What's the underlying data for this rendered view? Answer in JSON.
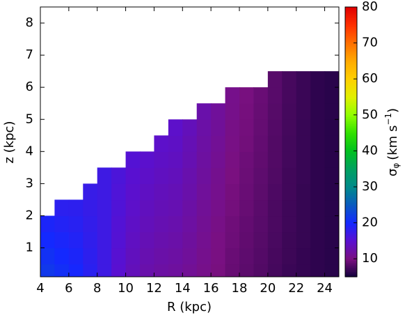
{
  "chart_data": {
    "type": "heatmap",
    "x_label": "R (kpc)",
    "y_label": "z (kpc)",
    "colorbar_label": {
      "symbol": "σ",
      "subscript": "φ",
      "unit": "(km s",
      "exponent": "−1",
      "close": ")"
    },
    "x": [
      4.5,
      5.5,
      6.5,
      7.5,
      8.5,
      9.5,
      10.5,
      11.5,
      12.5,
      13.5,
      14.5,
      15.5,
      16.5,
      17.5,
      18.5,
      19.5,
      20.5,
      21.5,
      22.5,
      23.5,
      24.5
    ],
    "y": [
      0.25,
      0.75,
      1.25,
      1.75,
      2.25,
      2.75,
      3.25,
      3.75,
      4.25,
      4.75,
      5.25,
      5.75,
      6.25
    ],
    "values": [
      [
        21.6,
        20.7,
        19.8,
        18.4,
        17,
        15.1,
        13.6,
        12.7,
        12.2,
        11.9,
        11.3,
        10.6,
        9.9,
        9.1,
        8.6,
        8.1,
        7.5,
        7.0,
        6.7,
        6.4,
        6.2
      ],
      [
        20.9,
        20.1,
        19.4,
        18.2,
        17,
        15.2,
        13.9,
        13.0,
        12.5,
        12.2,
        11.6,
        10.8,
        10.1,
        9.2,
        8.7,
        8.2,
        7.6,
        7.1,
        6.7,
        6.4,
        6.2
      ],
      [
        20.1,
        19.5,
        19.0,
        18.0,
        17,
        15.4,
        14.1,
        13.3,
        12.8,
        12.5,
        11.8,
        11.0,
        10.2,
        9.4,
        8.8,
        8.3,
        7.7,
        7.1,
        6.8,
        6.4,
        6.2
      ],
      [
        19.4,
        18.9,
        18.6,
        17.8,
        17,
        15.5,
        14.4,
        13.6,
        13.1,
        12.8,
        12.1,
        11.2,
        10.4,
        9.5,
        8.9,
        8.4,
        7.8,
        7.2,
        6.8,
        6.4,
        6.2
      ],
      [
        null,
        18.3,
        18.2,
        17.6,
        17,
        15.7,
        14.6,
        13.9,
        13.4,
        13.1,
        12.3,
        11.4,
        10.6,
        9.7,
        9.1,
        8.5,
        7.8,
        7.2,
        6.8,
        6.4,
        6.2
      ],
      [
        null,
        null,
        null,
        17.4,
        17,
        15.8,
        14.9,
        14.2,
        13.7,
        13.4,
        12.6,
        11.6,
        10.8,
        9.8,
        9.2,
        8.6,
        7.9,
        7.3,
        6.8,
        6.4,
        6.2
      ],
      [
        null,
        null,
        null,
        null,
        17,
        16.0,
        15.1,
        14.5,
        14.0,
        13.7,
        12.8,
        11.8,
        10.9,
        10.0,
        9.3,
        8.7,
        8.0,
        7.3,
        6.9,
        6.4,
        6.2
      ],
      [
        null,
        null,
        null,
        null,
        null,
        null,
        15.4,
        14.8,
        14.3,
        14.0,
        13.1,
        12.0,
        11.1,
        10.1,
        9.4,
        8.8,
        8.1,
        7.4,
        6.9,
        6.4,
        6.2
      ],
      [
        null,
        null,
        null,
        null,
        null,
        null,
        null,
        null,
        14.6,
        14.3,
        13.3,
        12.2,
        11.3,
        10.3,
        9.6,
        8.9,
        8.1,
        7.4,
        6.9,
        6.4,
        6.2
      ],
      [
        null,
        null,
        null,
        null,
        null,
        null,
        null,
        null,
        null,
        14.6,
        13.6,
        12.4,
        11.5,
        10.4,
        9.7,
        9.0,
        8.2,
        7.5,
        6.9,
        6.4,
        6.2
      ],
      [
        null,
        null,
        null,
        null,
        null,
        null,
        null,
        null,
        null,
        null,
        null,
        12.6,
        11.6,
        10.6,
        9.8,
        9.1,
        8.3,
        7.5,
        7.0,
        6.4,
        6.2
      ],
      [
        null,
        null,
        null,
        null,
        null,
        null,
        null,
        null,
        null,
        null,
        null,
        null,
        null,
        10.7,
        9.9,
        9.2,
        8.4,
        7.6,
        7.0,
        6.4,
        6.2
      ],
      [
        null,
        null,
        null,
        null,
        null,
        null,
        null,
        null,
        null,
        null,
        null,
        null,
        null,
        null,
        null,
        null,
        8.4,
        7.6,
        7.0,
        6.4,
        6.2
      ]
    ],
    "xlim": [
      4,
      25
    ],
    "xticks": [
      4,
      6,
      8,
      10,
      12,
      14,
      16,
      18,
      20,
      22,
      24
    ],
    "ylim": [
      0.1,
      8.5
    ],
    "yticks": [
      1,
      2,
      3,
      4,
      5,
      6,
      7,
      8
    ],
    "clim": [
      5,
      80
    ],
    "cticks": [
      10,
      20,
      30,
      40,
      50,
      60,
      70,
      80
    ],
    "colormap": [
      "#10003a",
      "#7a1080",
      "#5a10d0",
      "#1428ff",
      "#0a5ac0",
      "#008a8a",
      "#00a060",
      "#00c020",
      "#30e000",
      "#90ff00",
      "#e0f000",
      "#ffd000",
      "#ffaa00",
      "#ff7000",
      "#ff3000",
      "#e00000"
    ]
  }
}
